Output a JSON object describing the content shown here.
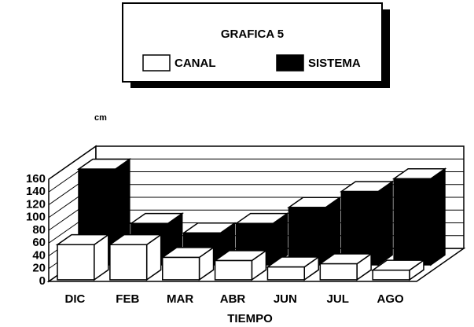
{
  "chart_data": {
    "type": "bar3d",
    "title": "GRAFICA 5",
    "y_label": "cm",
    "x_label": "TIEMPO",
    "categories": [
      "DIC",
      "FEB",
      "MAR",
      "ABR",
      "JUN",
      "JUL",
      "AGO"
    ],
    "series": [
      {
        "name": "CANAL",
        "color": "#ffffff",
        "values": [
          55,
          55,
          35,
          30,
          20,
          25,
          15
        ]
      },
      {
        "name": "SISTEMA",
        "color": "#000000",
        "values": [
          150,
          65,
          50,
          65,
          90,
          115,
          135
        ]
      }
    ],
    "ylim": [
      0,
      160
    ],
    "yticks": [
      0,
      20,
      40,
      60,
      80,
      100,
      120,
      140,
      160
    ],
    "grid": true
  }
}
